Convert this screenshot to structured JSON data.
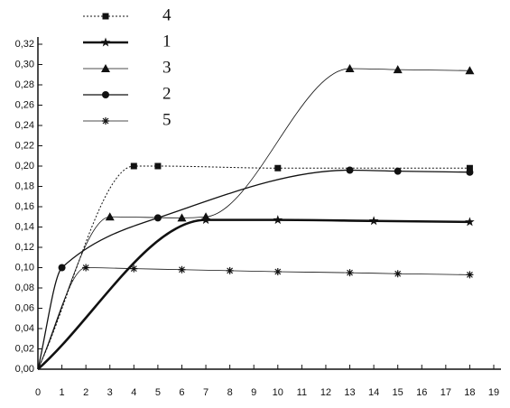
{
  "chart_data": {
    "type": "line",
    "xlim": [
      0,
      19
    ],
    "xticks": [
      0,
      1,
      2,
      3,
      4,
      5,
      6,
      7,
      8,
      9,
      10,
      11,
      12,
      13,
      14,
      15,
      16,
      17,
      18,
      19
    ],
    "ylim": [
      0,
      0.32
    ],
    "yticks": [
      {
        "value": 0,
        "label": "0,00"
      },
      {
        "value": 0.02,
        "label": "0,02"
      },
      {
        "value": 0.04,
        "label": "0,04"
      },
      {
        "value": 0.06,
        "label": "0,06"
      },
      {
        "value": 0.08,
        "label": "0,08"
      },
      {
        "value": 0.1,
        "label": "0,10"
      },
      {
        "value": 0.12,
        "label": "0,12"
      },
      {
        "value": 0.14,
        "label": "0,14"
      },
      {
        "value": 0.16,
        "label": "0,16"
      },
      {
        "value": 0.18,
        "label": "0,18"
      },
      {
        "value": 0.2,
        "label": "0,20"
      },
      {
        "value": 0.22,
        "label": "0,22"
      },
      {
        "value": 0.24,
        "label": "0,24"
      },
      {
        "value": 0.26,
        "label": "0,26"
      },
      {
        "value": 0.28,
        "label": "0,28"
      },
      {
        "value": 0.3,
        "label": "0,30"
      },
      {
        "value": 0.32,
        "label": "0,32"
      }
    ],
    "legend": "upper left",
    "series": [
      {
        "name": "4",
        "color": "#111",
        "marker": "square",
        "line": "dotted",
        "x": [
          0,
          4,
          5,
          10,
          18
        ],
        "values": [
          0,
          0.2,
          0.2,
          0.198,
          0.198
        ]
      },
      {
        "name": "1",
        "color": "#111",
        "marker": "star",
        "line": "thick",
        "x": [
          0,
          7,
          10,
          14,
          18
        ],
        "values": [
          0,
          0.147,
          0.147,
          0.146,
          0.145
        ]
      },
      {
        "name": "3",
        "color": "#111",
        "marker": "triangle",
        "line": "thin",
        "x": [
          0,
          3,
          6,
          7,
          13,
          15,
          18
        ],
        "values": [
          0,
          0.15,
          0.149,
          0.15,
          0.296,
          0.295,
          0.294
        ]
      },
      {
        "name": "2",
        "color": "#111",
        "marker": "circle",
        "line": "medium",
        "x": [
          0,
          1,
          5,
          13,
          15,
          18
        ],
        "values": [
          0,
          0.1,
          0.149,
          0.196,
          0.195,
          0.194
        ]
      },
      {
        "name": "5",
        "color": "#111",
        "marker": "asterisk",
        "line": "thin",
        "x": [
          0,
          2,
          4,
          6,
          8,
          10,
          13,
          15,
          18
        ],
        "values": [
          0,
          0.1,
          0.099,
          0.098,
          0.097,
          0.096,
          0.095,
          0.094,
          0.093
        ]
      }
    ]
  }
}
